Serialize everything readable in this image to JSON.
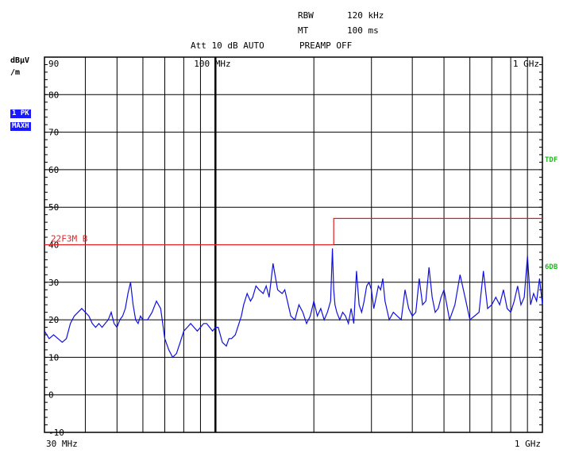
{
  "header": {
    "rbw_label": "RBW",
    "rbw_value": "120 kHz",
    "mt_label": "MT",
    "mt_value": "100 ms",
    "att_line": "Att 10 dB AUTO",
    "preamp_line": "PREAMP OFF"
  },
  "unit_label_1": "dBµV",
  "unit_label_2": "/m",
  "trace_badges": [
    "1 PK",
    "MAXH"
  ],
  "side_marks": {
    "tdf": "TDF",
    "db6": "6DB"
  },
  "colors": {
    "trace": "#1010e0",
    "limit": "#e02020",
    "grid": "#000000",
    "side": "#22bb22",
    "badge": "#1a1aff"
  },
  "chart_data": {
    "type": "line",
    "x_scale": "log",
    "xlim": [
      30,
      1000
    ],
    "ylim": [
      -10,
      90
    ],
    "ylabel": "dBµV/m",
    "y_ticks": [
      90,
      80,
      70,
      60,
      50,
      40,
      30,
      20,
      10,
      0,
      -10
    ],
    "x_tick_labels": {
      "start": "30 MHz",
      "end": "1 GHz",
      "top_mid": "100 MHz",
      "top_end": "1 GHz"
    },
    "limit_line": {
      "label": "22F3M B",
      "points": [
        [
          30,
          40
        ],
        [
          230,
          40
        ],
        [
          230,
          47
        ],
        [
          1000,
          47
        ]
      ]
    },
    "series": [
      {
        "x": [
          30,
          31,
          32,
          33,
          34,
          35,
          36,
          37,
          38,
          39,
          40,
          41,
          42,
          43,
          44,
          45,
          46,
          47,
          48,
          49,
          50,
          51,
          52,
          53,
          54,
          55,
          56,
          57,
          58,
          59,
          60,
          62,
          64,
          66,
          68,
          70,
          72,
          74,
          76,
          78,
          80,
          82,
          84,
          86,
          88,
          90,
          92,
          94,
          96,
          98,
          100,
          102,
          105,
          108,
          110,
          112,
          115,
          118,
          120,
          122,
          125,
          128,
          130,
          133,
          136,
          140,
          143,
          146,
          150,
          155,
          160,
          163,
          166,
          170,
          175,
          180,
          185,
          190,
          195,
          200,
          205,
          210,
          215,
          220,
          225,
          228,
          230,
          232,
          235,
          240,
          245,
          250,
          255,
          260,
          265,
          270,
          275,
          280,
          285,
          290,
          295,
          300,
          305,
          310,
          315,
          320,
          325,
          330,
          340,
          350,
          360,
          370,
          380,
          390,
          400,
          410,
          420,
          430,
          440,
          450,
          460,
          470,
          480,
          490,
          500,
          520,
          540,
          560,
          580,
          600,
          620,
          640,
          660,
          680,
          700,
          720,
          740,
          760,
          780,
          800,
          820,
          840,
          860,
          880,
          900,
          920,
          940,
          960,
          980,
          1000
        ],
        "y": [
          17,
          15,
          16,
          15,
          14,
          15,
          19,
          21,
          22,
          23,
          22,
          21,
          19,
          18,
          19,
          18,
          19,
          20,
          22,
          19,
          18,
          20,
          21,
          23,
          27,
          30,
          24,
          20,
          19,
          21,
          20,
          20,
          22,
          25,
          23,
          15,
          12,
          10,
          11,
          14,
          17,
          18,
          19,
          18,
          17,
          18,
          19,
          19,
          18,
          17,
          18,
          18,
          14,
          13,
          15,
          15,
          16,
          19,
          21,
          24,
          27,
          25,
          26,
          29,
          28,
          27,
          29,
          26,
          35,
          28,
          27,
          28,
          25,
          21,
          20,
          24,
          22,
          19,
          21,
          25,
          21,
          23,
          20,
          22,
          25,
          39,
          28,
          24,
          22,
          20,
          22,
          21,
          19,
          23,
          19,
          33,
          24,
          22,
          25,
          29,
          30,
          28,
          23,
          26,
          29,
          28,
          31,
          25,
          20,
          22,
          21,
          20,
          28,
          23,
          21,
          22,
          31,
          24,
          25,
          34,
          26,
          22,
          23,
          26,
          28,
          20,
          24,
          32,
          26,
          20,
          21,
          22,
          33,
          23,
          24,
          26,
          24,
          28,
          23,
          22,
          25,
          29,
          24,
          26,
          37,
          24,
          27,
          25,
          31,
          24
        ]
      }
    ]
  }
}
